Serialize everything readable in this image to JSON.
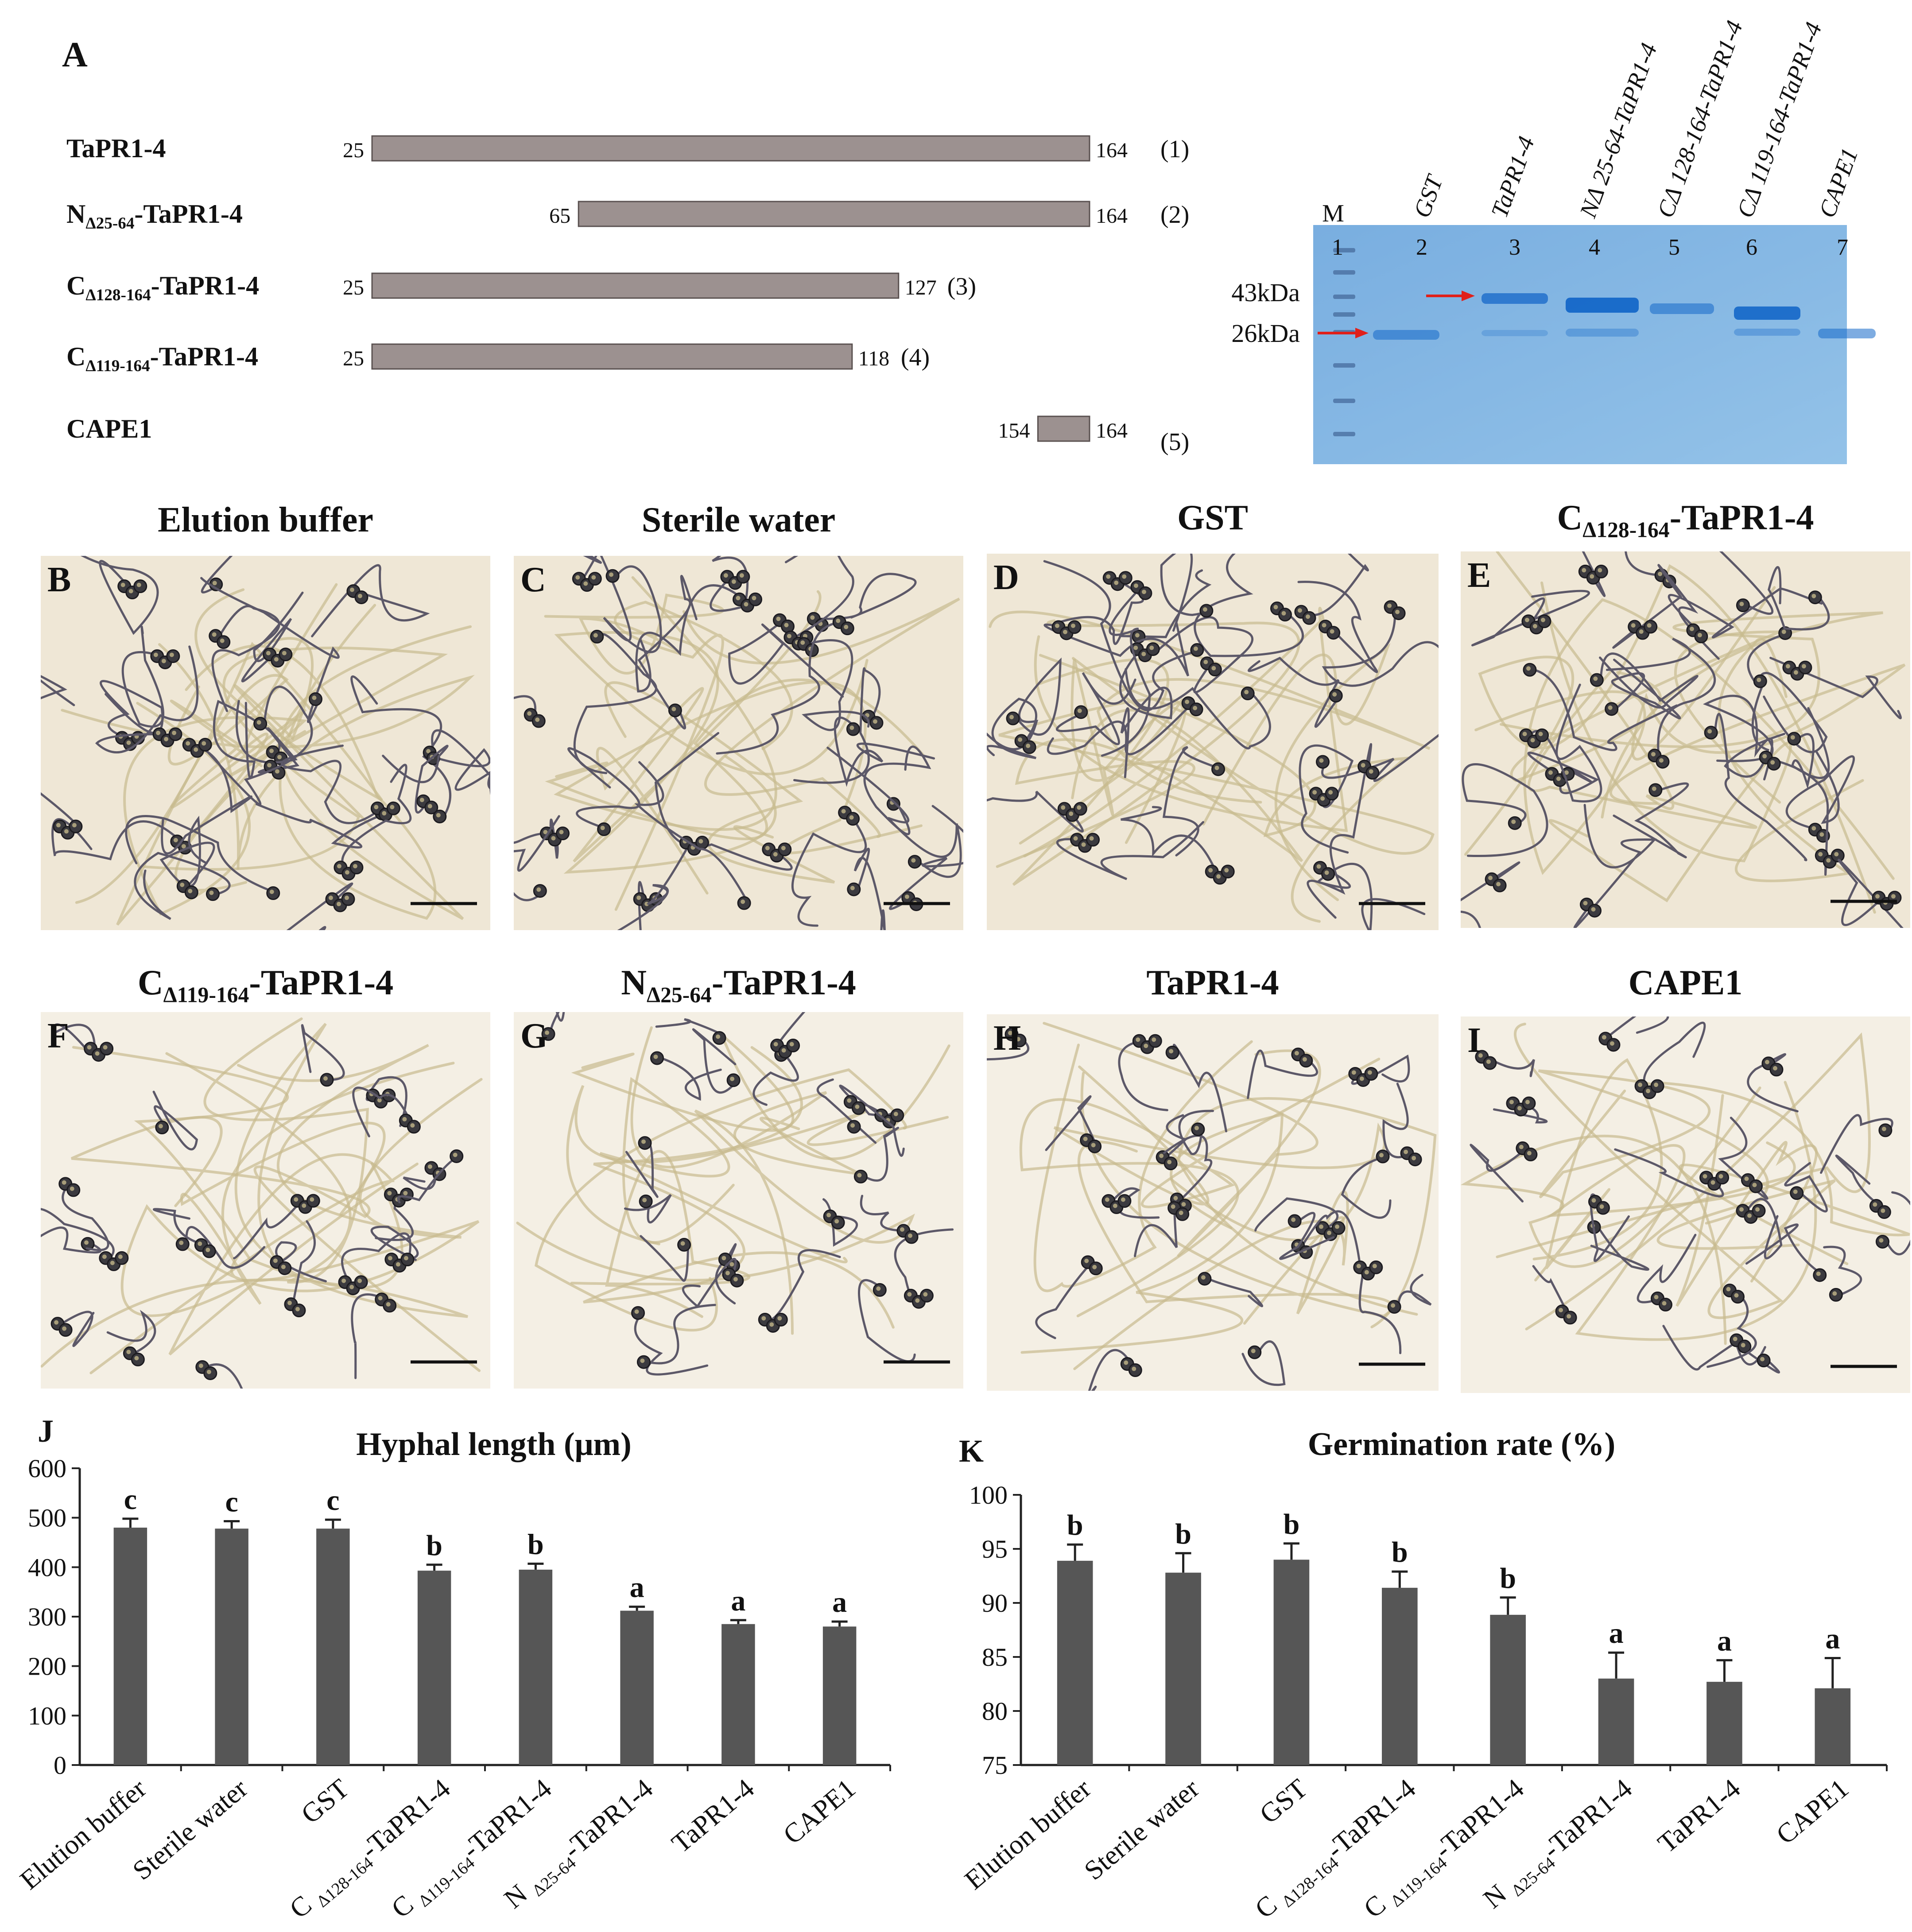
{
  "panel_a": {
    "letter": "A",
    "constructs": [
      {
        "label": "TaPR1-4",
        "sub": "",
        "label_rest": "",
        "start": "25",
        "end": "164",
        "index": "(1)",
        "s": 25,
        "e": 164
      },
      {
        "label": "N",
        "sub": "Δ25-64",
        "label_rest": "-TaPR1-4",
        "start": "65",
        "end": "164",
        "index": "(2)",
        "s": 65,
        "e": 164
      },
      {
        "label": "C",
        "sub": "Δ128-164",
        "label_rest": "-TaPR1-4",
        "start": "25",
        "end": "127",
        "index": "(3)",
        "s": 25,
        "e": 127
      },
      {
        "label": "C",
        "sub": "Δ119-164",
        "label_rest": "-TaPR1-4",
        "start": "25",
        "end": "118",
        "index": "(4)",
        "s": 25,
        "e": 118
      },
      {
        "label": "CAPE1",
        "sub": "",
        "label_rest": "",
        "start": "154",
        "end": "164",
        "index": "(5)",
        "s": 154,
        "e": 164
      }
    ],
    "gel": {
      "marker_label": "M",
      "lane_labels": [
        "GST",
        "TaPR1-4",
        "NΔ 25-64-TaPR1-4",
        "CΔ 128-164-TaPR1-4",
        "CΔ 119-164-TaPR1-4",
        "CAPE1"
      ],
      "lane_numbers": [
        "1",
        "2",
        "3",
        "4",
        "5",
        "6",
        "7"
      ],
      "size_labels": [
        "43kDa",
        "26kDa"
      ],
      "gel_color": "#7fb3e0",
      "arrow_color": "#e0201a"
    }
  },
  "micrographs": [
    {
      "letter": "B",
      "title": "Elution buffer",
      "title_main": "",
      "title_sub": "",
      "title_rest": ""
    },
    {
      "letter": "C",
      "title": "Sterile water",
      "title_main": "",
      "title_sub": "",
      "title_rest": ""
    },
    {
      "letter": "D",
      "title": "GST",
      "title_main": "",
      "title_sub": "",
      "title_rest": ""
    },
    {
      "letter": "E",
      "title": "",
      "title_main": "C",
      "title_sub": "Δ128-164",
      "title_rest": "-TaPR1-4"
    },
    {
      "letter": "F",
      "title": "",
      "title_main": "C",
      "title_sub": "Δ119-164",
      "title_rest": "-TaPR1-4"
    },
    {
      "letter": "G",
      "title": "",
      "title_main": "N",
      "title_sub": "Δ25-64",
      "title_rest": "-TaPR1-4"
    },
    {
      "letter": "H",
      "title": "TaPR1-4",
      "title_main": "",
      "title_sub": "",
      "title_rest": ""
    },
    {
      "letter": "I",
      "title": "CAPE1",
      "title_main": "",
      "title_sub": "",
      "title_rest": ""
    }
  ],
  "category_labels": [
    {
      "main": "Elution buffer",
      "sub": "",
      "rest": ""
    },
    {
      "main": "Sterile water",
      "sub": "",
      "rest": ""
    },
    {
      "main": "GST",
      "sub": "",
      "rest": ""
    },
    {
      "main": "C ",
      "sub": "Δ128-164",
      "rest": "-TaPR1-4"
    },
    {
      "main": "C ",
      "sub": "Δ119-164",
      "rest": "-TaPR1-4"
    },
    {
      "main": "N ",
      "sub": "Δ25-64",
      "rest": "-TaPR1-4"
    },
    {
      "main": "TaPR1-4",
      "sub": "",
      "rest": ""
    },
    {
      "main": "CAPE1",
      "sub": "",
      "rest": ""
    }
  ],
  "chart_data": [
    {
      "panel": "J",
      "type": "bar",
      "title": "Hyphal length (μm)",
      "categories": [
        "Elution buffer",
        "Sterile water",
        "GST",
        "CΔ128-164-TaPR1-4",
        "CΔ119-164-TaPR1-4",
        "NΔ25-64-TaPR1-4",
        "TaPR1-4",
        "CAPE1"
      ],
      "values": [
        480,
        478,
        478,
        393,
        395,
        312,
        285,
        280
      ],
      "errors": [
        18,
        15,
        18,
        12,
        12,
        8,
        8,
        10
      ],
      "letters": [
        "c",
        "c",
        "c",
        "b",
        "b",
        "a",
        "a",
        "a"
      ],
      "ylim": [
        0,
        600
      ],
      "yticks": [
        0,
        100,
        200,
        300,
        400,
        500,
        600
      ],
      "bar_color": "#565656"
    },
    {
      "panel": "K",
      "type": "bar",
      "title": "Germination rate (%)",
      "categories": [
        "Elution buffer",
        "Sterile water",
        "GST",
        "CΔ128-164-TaPR1-4",
        "CΔ119-164-TaPR1-4",
        "NΔ25-64-TaPR1-4",
        "TaPR1-4",
        "CAPE1"
      ],
      "values": [
        93.9,
        92.8,
        94.0,
        91.4,
        88.9,
        83.0,
        82.7,
        82.1
      ],
      "errors": [
        1.5,
        1.8,
        1.5,
        1.5,
        1.6,
        2.4,
        2.0,
        2.8
      ],
      "letters": [
        "b",
        "b",
        "b",
        "b",
        "b",
        "a",
        "a",
        "a"
      ],
      "ylim": [
        75,
        100
      ],
      "yticks": [
        75,
        80,
        85,
        90,
        95,
        100
      ],
      "bar_color": "#565656"
    }
  ]
}
